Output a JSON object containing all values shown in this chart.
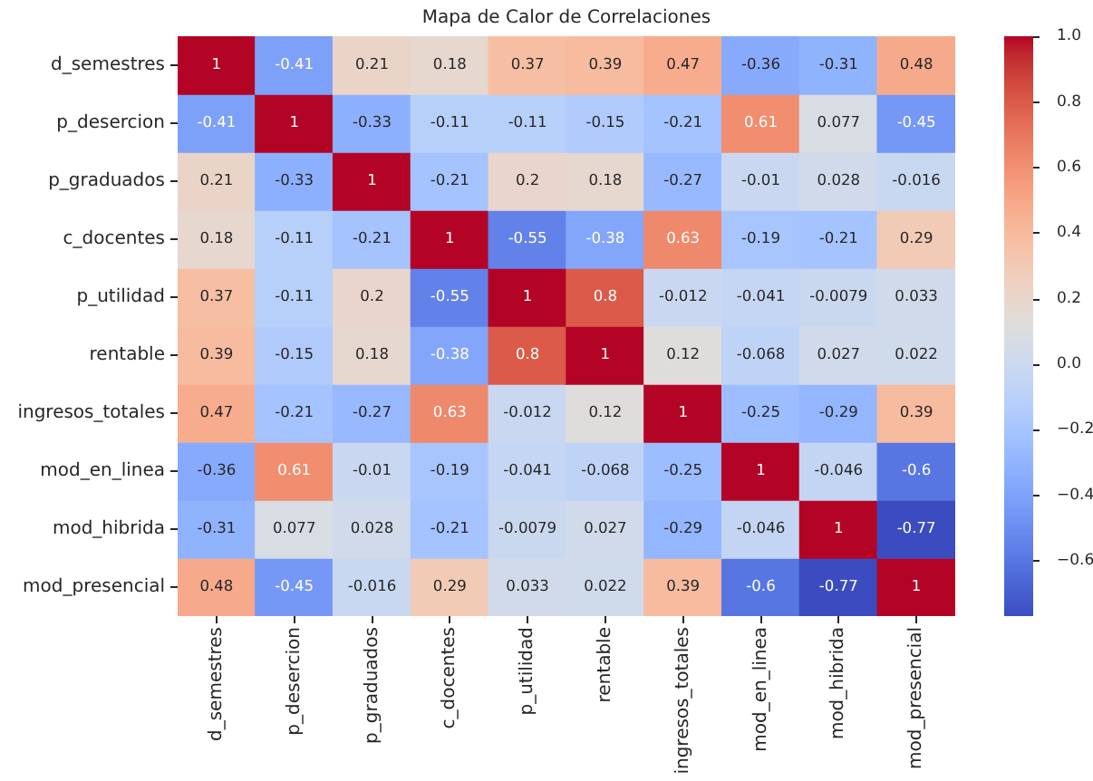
{
  "chart_data": {
    "type": "heatmap",
    "title": "Mapa de Calor de Correlaciones",
    "categories": [
      "d_semestres",
      "p_desercion",
      "p_graduados",
      "c_docentes",
      "p_utilidad",
      "rentable",
      "ingresos_totales",
      "mod_en_linea",
      "mod_hibrida",
      "mod_presencial"
    ],
    "y_categories": [
      "d_semestres",
      "p_desercion",
      "p_graduados",
      "c_docentes",
      "p_utilidad",
      "rentable",
      "ingresos_totales",
      "mod_en_linea",
      "mod_hibrida",
      "mod_presencial"
    ],
    "cells": [
      [
        1,
        -0.41,
        0.21,
        0.18,
        0.37,
        0.39,
        0.47,
        -0.36,
        -0.31,
        0.48
      ],
      [
        -0.41,
        1,
        -0.33,
        -0.11,
        -0.11,
        -0.15,
        -0.21,
        0.61,
        0.077,
        -0.45
      ],
      [
        0.21,
        -0.33,
        1,
        -0.21,
        0.2,
        0.18,
        -0.27,
        -0.01,
        0.028,
        -0.016
      ],
      [
        0.18,
        -0.11,
        -0.21,
        1,
        -0.55,
        -0.38,
        0.63,
        -0.19,
        -0.21,
        0.29
      ],
      [
        0.37,
        -0.11,
        0.2,
        -0.55,
        1,
        0.8,
        -0.012,
        -0.041,
        -0.0079,
        0.033
      ],
      [
        0.39,
        -0.15,
        0.18,
        -0.38,
        0.8,
        1,
        0.12,
        -0.068,
        0.027,
        0.022
      ],
      [
        0.47,
        -0.21,
        -0.27,
        0.63,
        -0.012,
        0.12,
        1,
        -0.25,
        -0.29,
        0.39
      ],
      [
        -0.36,
        0.61,
        -0.01,
        -0.19,
        -0.041,
        -0.068,
        -0.25,
        1,
        -0.046,
        -0.6
      ],
      [
        -0.31,
        0.077,
        0.028,
        -0.21,
        -0.0079,
        0.027,
        -0.29,
        -0.046,
        1,
        -0.77
      ],
      [
        0.48,
        -0.45,
        -0.016,
        0.29,
        0.033,
        0.022,
        0.39,
        -0.6,
        -0.77,
        1
      ]
    ],
    "clim": [
      -0.77,
      1
    ],
    "cticks": [
      {
        "value": 1,
        "label": "1.0"
      },
      {
        "value": 0.8,
        "label": "0.8"
      },
      {
        "value": 0.6,
        "label": "0.6"
      },
      {
        "value": 0.4,
        "label": "0.4"
      },
      {
        "value": 0.2,
        "label": "0.2"
      },
      {
        "value": 0,
        "label": "0.0"
      },
      {
        "value": -0.2,
        "label": "−0.2"
      },
      {
        "value": -0.4,
        "label": "−0.4"
      },
      {
        "value": -0.6,
        "label": "−0.6"
      }
    ],
    "data_labels": true
  }
}
